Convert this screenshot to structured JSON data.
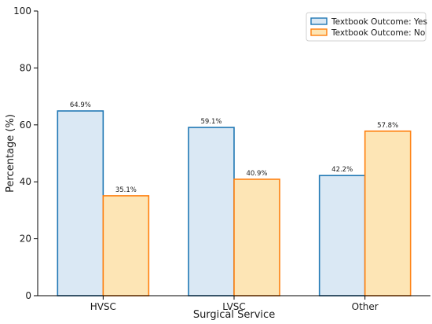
{
  "chart_data": {
    "type": "bar",
    "title": "",
    "xlabel": "Surgical Service",
    "ylabel": "Percentage (%)",
    "categories": [
      "HVSC",
      "LVSC",
      "Other"
    ],
    "series": [
      {
        "name": "Textbook Outcome: Yes",
        "values": [
          64.9,
          59.1,
          42.2
        ],
        "fill": "#dae8f4",
        "stroke": "#1f77b4"
      },
      {
        "name": "Textbook Outcome: No",
        "values": [
          35.1,
          40.9,
          57.8
        ],
        "fill": "#fde5b5",
        "stroke": "#ff7f0e"
      }
    ],
    "data_labels": [
      [
        "64.9%",
        "59.1%",
        "42.2%"
      ],
      [
        "35.1%",
        "40.9%",
        "57.8%"
      ]
    ],
    "ylim": [
      0,
      100
    ],
    "yticks": [
      0,
      20,
      40,
      60,
      80,
      100
    ],
    "grid": false,
    "legend_position": "top-right"
  }
}
